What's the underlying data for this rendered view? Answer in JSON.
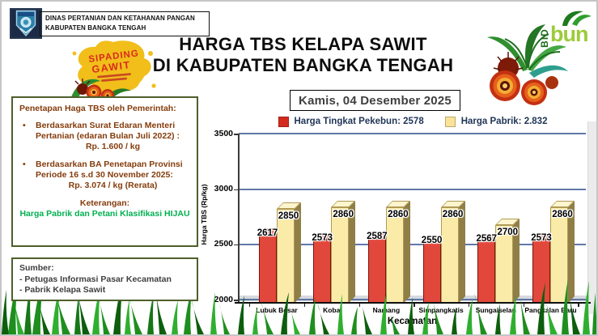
{
  "header": {
    "agency_line1": "DINAS PERTANIAN DAN KETAHANAN PANGAN",
    "agency_line2": "KABUPATEN BANGKA TENGAH",
    "title_line1": "HARGA TBS KELAPA SAWIT",
    "title_line2": "DI KABUPATEN BANGKA TENGAH"
  },
  "logos": {
    "sipading": {
      "line1": "SIPADING",
      "line2": "GAWIT"
    },
    "bidbun": {
      "bid": "BID",
      "bun": "bun"
    }
  },
  "date_box": {
    "text": "Kamis, 04 Desember 2025"
  },
  "info_panel": {
    "title": "Penetapan Haga TBS oleh Pemerintah:",
    "bullets": [
      {
        "text": "Berdasarkan Surat Edaran Menteri Pertanian (edaran Bulan Juli 2022) :",
        "value": "Rp. 1.600 / kg"
      },
      {
        "text": "Berdasarkan BA Penetapan Provinsi Periode 16 s.d 30 November 2025:",
        "value": "Rp. 3.074 / kg (Rerata)"
      }
    ],
    "note_label": "Keterangan:",
    "note_text": "Harga Pabrik dan Petani Klasifikasi HIJAU",
    "note_color": "#00B050"
  },
  "source_panel": {
    "title": "Sumber:",
    "items": [
      "- Petugas Informasi Pasar Kecamatan",
      "- Pabrik Kelapa Sawit"
    ]
  },
  "legend": {
    "items": [
      {
        "label": "Harga Tingkat Pekebun: 2578",
        "color": "#d42a1e"
      },
      {
        "label": "Harga Pabrik: 2.832",
        "color": "#fae296"
      }
    ]
  },
  "chart_data": {
    "type": "bar",
    "categories": [
      "Lubuk Besar",
      "Koba",
      "Namang",
      "Simpangkatis",
      "Sungaiselan",
      "Pangkalan Baru"
    ],
    "series": [
      {
        "name": "Harga Tingkat Pekebun",
        "values": [
          2617,
          2573,
          2587,
          2550,
          2567,
          2573
        ],
        "face": "#e2473b",
        "top": "#ec6f60",
        "side": "#9b1d10",
        "edge": "#7a150a"
      },
      {
        "name": "Harga Pabrik",
        "values": [
          2850,
          2860,
          2860,
          2860,
          2700,
          2860
        ],
        "face": "#fbeba8",
        "top": "#fdf5ce",
        "side": "#8f7e46",
        "edge": "#b09a55"
      }
    ],
    "xlabel": "Kecamatan",
    "ylabel": "Harga TBS (Rp/kg)",
    "ylim": [
      2000,
      3500
    ],
    "yticks": [
      2000,
      2500,
      3000,
      3500
    ],
    "grid": true,
    "legend_position": "top",
    "bar_labels": true
  }
}
